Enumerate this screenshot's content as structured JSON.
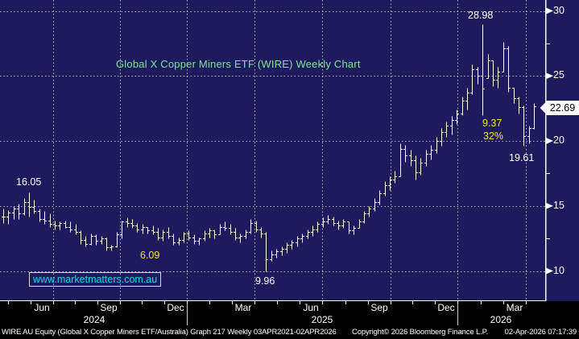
{
  "title": "Global X Copper Miners ETF (WIRE) Weekly Chart",
  "watermark": "www.marketmatters.com.au",
  "annotations": {
    "high_2024": "16.05",
    "drop_2024_amount": "6.09",
    "low_2025": "9.96",
    "high_2026": "28.98",
    "drop_2026_amount": "9.37",
    "drop_2026_pct": "32%",
    "low_2026": "19.61"
  },
  "last_price_label": "22.69",
  "footer": {
    "left": "WIRE AU Equity (Global X Copper Miners ETF/Australia) Graph 217 Weekly 03APR2021-02APR2026",
    "center": "Copyright© 2026 Bloomberg Finance L.P.",
    "right": "02-Apr-2026 07:17:39"
  },
  "colors": {
    "plot_background": "#1d1b5e",
    "outer_background": "#000000",
    "bars": "#ffffff",
    "grid": "#b9b9bc",
    "title_green": "#7fe49a",
    "annotation_yellow": "#f7e72e",
    "watermark_cyan": "#1fd3f2",
    "axis_text": "#ffffff",
    "price_box_bg": "#ffffff",
    "price_box_text": "#000000"
  },
  "chart_data": {
    "type": "ohlc-bar",
    "title": "Global X Copper Miners ETF (WIRE) Weekly Chart",
    "frequency": "Weekly",
    "legend_position": "none",
    "grid": "dotted",
    "y_axis_side": "right",
    "y_ticks": [
      30,
      25,
      20,
      15,
      10
    ],
    "y_minor_ticks": [
      27.5,
      17.5,
      12.5
    ],
    "ylim": [
      9.3,
      30.8
    ],
    "x_month_labels": [
      "Jun",
      "Sep",
      "Dec",
      "Mar",
      "Jun",
      "Sep",
      "Dec",
      "Mar"
    ],
    "x_year_labels": [
      "2024",
      "2025",
      "2026"
    ],
    "last_price": 22.69,
    "key_points": {
      "high_jun_2024": 16.05,
      "decline_2024_2025_amount": 6.09,
      "low_apr_2025": 9.96,
      "high_feb_2026": 28.98,
      "decline_2026_amount": 9.37,
      "decline_2026_pct": "32%",
      "low_mar_2026": 19.61,
      "last_close": 22.69
    },
    "bars_high_low_close": [
      [
        14.8,
        13.7,
        14.2
      ],
      [
        14.7,
        13.6,
        14.5
      ],
      [
        15.0,
        14.0,
        14.8
      ],
      [
        15.2,
        14.0,
        14.4
      ],
      [
        15.6,
        14.3,
        15.3
      ],
      [
        16.05,
        14.2,
        14.9
      ],
      [
        15.5,
        14.4,
        14.6
      ],
      [
        14.8,
        13.8,
        14.0
      ],
      [
        14.6,
        13.6,
        13.9
      ],
      [
        14.4,
        13.4,
        13.6
      ],
      [
        13.9,
        13.2,
        13.5
      ],
      [
        13.8,
        13.2,
        13.7
      ],
      [
        13.9,
        13.3,
        13.4
      ],
      [
        13.8,
        13.0,
        13.2
      ],
      [
        13.6,
        12.8,
        13.0
      ],
      [
        13.1,
        12.1,
        12.4
      ],
      [
        12.7,
        11.9,
        12.1
      ],
      [
        12.9,
        12.0,
        12.7
      ],
      [
        12.8,
        12.0,
        12.3
      ],
      [
        12.7,
        12.1,
        12.5
      ],
      [
        12.6,
        11.6,
        11.8
      ],
      [
        12.0,
        11.6,
        11.9
      ],
      [
        13.0,
        11.8,
        12.8
      ],
      [
        13.9,
        12.5,
        13.8
      ],
      [
        14.1,
        13.4,
        13.7
      ],
      [
        14.0,
        13.3,
        13.5
      ],
      [
        13.7,
        13.0,
        13.2
      ],
      [
        13.6,
        12.9,
        13.4
      ],
      [
        13.4,
        12.9,
        13.1
      ],
      [
        13.5,
        12.8,
        13.0
      ],
      [
        13.3,
        12.4,
        12.6
      ],
      [
        13.2,
        12.3,
        13.0
      ],
      [
        13.4,
        12.5,
        12.7
      ],
      [
        12.9,
        12.0,
        12.2
      ],
      [
        12.6,
        12.0,
        12.4
      ],
      [
        13.0,
        12.2,
        12.9
      ],
      [
        13.1,
        12.4,
        12.6
      ],
      [
        12.8,
        12.1,
        12.3
      ],
      [
        12.6,
        12.0,
        12.5
      ],
      [
        13.1,
        12.3,
        12.9
      ],
      [
        13.3,
        12.6,
        13.1
      ],
      [
        13.2,
        12.5,
        12.8
      ],
      [
        13.6,
        12.8,
        13.4
      ],
      [
        13.8,
        13.1,
        13.3
      ],
      [
        13.6,
        12.8,
        13.0
      ],
      [
        13.3,
        12.4,
        12.6
      ],
      [
        12.9,
        12.2,
        12.7
      ],
      [
        13.2,
        12.5,
        13.0
      ],
      [
        14.0,
        12.9,
        13.7
      ],
      [
        13.9,
        13.0,
        13.2
      ],
      [
        13.4,
        12.6,
        12.9
      ],
      [
        13.0,
        9.96,
        10.9
      ],
      [
        11.6,
        10.8,
        11.3
      ],
      [
        11.7,
        11.0,
        11.5
      ],
      [
        11.9,
        11.2,
        11.7
      ],
      [
        12.2,
        11.4,
        12.0
      ],
      [
        12.4,
        11.7,
        12.2
      ],
      [
        12.7,
        11.9,
        12.5
      ],
      [
        12.9,
        12.2,
        12.7
      ],
      [
        13.2,
        12.5,
        13.0
      ],
      [
        13.5,
        12.7,
        13.2
      ],
      [
        13.8,
        13.0,
        13.6
      ],
      [
        14.1,
        13.4,
        13.8
      ],
      [
        14.3,
        13.6,
        14.0
      ],
      [
        14.2,
        13.5,
        13.7
      ],
      [
        13.9,
        13.2,
        13.5
      ],
      [
        14.0,
        13.3,
        13.8
      ],
      [
        13.8,
        12.9,
        13.1
      ],
      [
        13.5,
        12.8,
        13.3
      ],
      [
        14.0,
        13.3,
        13.8
      ],
      [
        14.6,
        13.7,
        14.4
      ],
      [
        15.0,
        14.2,
        14.8
      ],
      [
        15.6,
        14.6,
        15.3
      ],
      [
        16.2,
        15.1,
        16.0
      ],
      [
        16.9,
        15.8,
        16.6
      ],
      [
        17.3,
        16.2,
        17.0
      ],
      [
        17.7,
        16.8,
        17.3
      ],
      [
        19.8,
        17.3,
        19.4
      ],
      [
        19.7,
        18.4,
        18.9
      ],
      [
        19.3,
        18.1,
        18.5
      ],
      [
        18.9,
        17.0,
        17.6
      ],
      [
        18.7,
        17.4,
        18.3
      ],
      [
        19.3,
        18.1,
        19.0
      ],
      [
        19.7,
        18.6,
        19.3
      ],
      [
        20.3,
        19.1,
        20.0
      ],
      [
        21.0,
        19.6,
        20.7
      ],
      [
        21.5,
        20.3,
        21.2
      ],
      [
        21.9,
        20.5,
        21.6
      ],
      [
        22.4,
        21.3,
        22.1
      ],
      [
        23.4,
        22.0,
        23.1
      ],
      [
        24.1,
        22.4,
        23.7
      ],
      [
        25.9,
        23.6,
        25.5
      ],
      [
        25.7,
        24.4,
        25.0
      ],
      [
        28.98,
        22.0,
        24.0
      ],
      [
        26.7,
        24.8,
        26.2
      ],
      [
        26.2,
        24.2,
        24.7
      ],
      [
        25.7,
        24.1,
        25.3
      ],
      [
        27.6,
        25.3,
        27.1
      ],
      [
        27.3,
        23.8,
        24.1
      ],
      [
        24.1,
        22.9,
        23.3
      ],
      [
        23.4,
        22.1,
        22.6
      ],
      [
        22.7,
        19.61,
        20.4
      ],
      [
        21.2,
        19.8,
        21.0
      ],
      [
        22.9,
        20.9,
        22.69
      ]
    ]
  }
}
